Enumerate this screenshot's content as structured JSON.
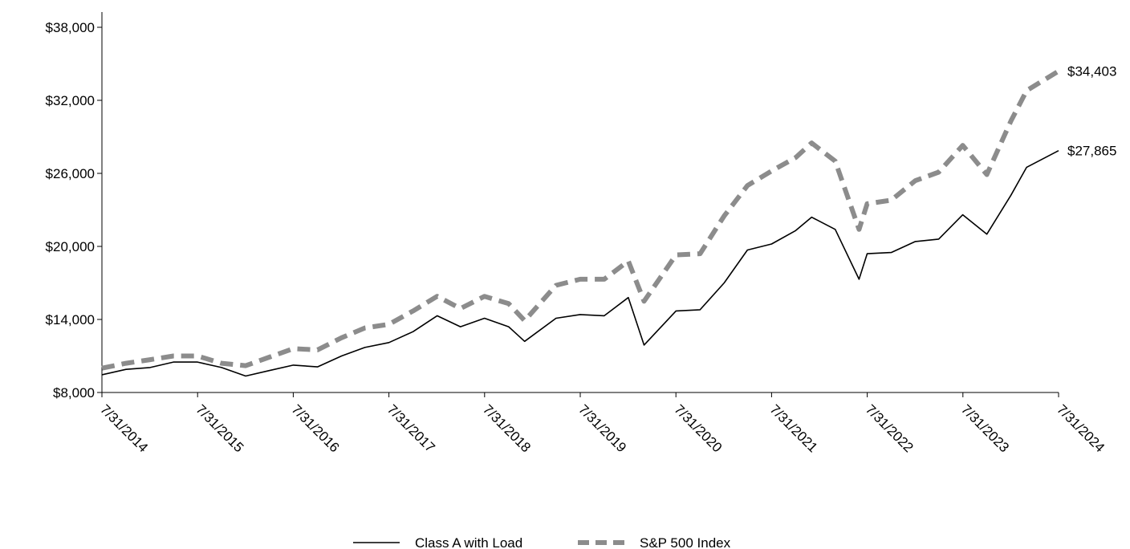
{
  "chart_data": {
    "type": "line",
    "x_label_format": "M/D/YYYY",
    "x_ticks": [
      "7/31/2014",
      "7/31/2015",
      "7/31/2016",
      "7/31/2017",
      "7/31/2018",
      "7/31/2019",
      "7/31/2020",
      "7/31/2021",
      "7/31/2022",
      "7/31/2023",
      "7/31/2024"
    ],
    "y_ticks": [
      "$8,000",
      "$14,000",
      "$20,000",
      "$26,000",
      "$32,000",
      "$38,000"
    ],
    "y_tick_values": [
      8000,
      14000,
      20000,
      26000,
      32000,
      38000
    ],
    "ylim": [
      8000,
      39000
    ],
    "x_start": "2014-07-31",
    "x_end": "2024-07-31",
    "legend_position": "bottom-center",
    "grid": false,
    "series": [
      {
        "name": "Class A with Load",
        "color": "#000000",
        "style": "solid",
        "end_label": "$27,865",
        "points": [
          [
            "2014-07-31",
            9450
          ],
          [
            "2014-10-31",
            9900
          ],
          [
            "2015-01-31",
            10050
          ],
          [
            "2015-04-30",
            10500
          ],
          [
            "2015-07-31",
            10500
          ],
          [
            "2015-10-31",
            10050
          ],
          [
            "2016-01-31",
            9350
          ],
          [
            "2016-04-30",
            9800
          ],
          [
            "2016-07-31",
            10250
          ],
          [
            "2016-10-31",
            10100
          ],
          [
            "2017-01-31",
            11000
          ],
          [
            "2017-04-30",
            11700
          ],
          [
            "2017-07-31",
            12100
          ],
          [
            "2017-10-31",
            13000
          ],
          [
            "2018-01-31",
            14300
          ],
          [
            "2018-04-30",
            13400
          ],
          [
            "2018-07-31",
            14100
          ],
          [
            "2018-10-31",
            13400
          ],
          [
            "2018-12-31",
            12200
          ],
          [
            "2019-04-30",
            14100
          ],
          [
            "2019-07-31",
            14400
          ],
          [
            "2019-10-31",
            14300
          ],
          [
            "2020-01-31",
            15800
          ],
          [
            "2020-03-31",
            11900
          ],
          [
            "2020-07-31",
            14700
          ],
          [
            "2020-10-31",
            14800
          ],
          [
            "2021-01-31",
            17000
          ],
          [
            "2021-04-30",
            19700
          ],
          [
            "2021-07-31",
            20200
          ],
          [
            "2021-10-31",
            21300
          ],
          [
            "2021-12-31",
            22400
          ],
          [
            "2022-03-31",
            21400
          ],
          [
            "2022-06-30",
            17300
          ],
          [
            "2022-07-31",
            19400
          ],
          [
            "2022-10-31",
            19500
          ],
          [
            "2023-01-31",
            20400
          ],
          [
            "2023-04-30",
            20600
          ],
          [
            "2023-07-31",
            22600
          ],
          [
            "2023-10-31",
            21000
          ],
          [
            "2024-01-31",
            24200
          ],
          [
            "2024-03-31",
            26500
          ],
          [
            "2024-07-31",
            27865
          ]
        ]
      },
      {
        "name": "S&P 500 Index",
        "color": "#8c8c8c",
        "style": "dashed",
        "end_label": "$34,403",
        "points": [
          [
            "2014-07-31",
            10000
          ],
          [
            "2014-10-31",
            10400
          ],
          [
            "2015-01-31",
            10700
          ],
          [
            "2015-04-30",
            11000
          ],
          [
            "2015-07-31",
            11000
          ],
          [
            "2015-10-31",
            10400
          ],
          [
            "2016-01-31",
            10200
          ],
          [
            "2016-04-30",
            10900
          ],
          [
            "2016-07-31",
            11600
          ],
          [
            "2016-10-31",
            11500
          ],
          [
            "2017-01-31",
            12500
          ],
          [
            "2017-04-30",
            13300
          ],
          [
            "2017-07-31",
            13600
          ],
          [
            "2017-10-31",
            14700
          ],
          [
            "2018-01-31",
            15900
          ],
          [
            "2018-04-30",
            14900
          ],
          [
            "2018-07-31",
            15900
          ],
          [
            "2018-10-31",
            15300
          ],
          [
            "2018-12-31",
            13900
          ],
          [
            "2019-04-30",
            16800
          ],
          [
            "2019-07-31",
            17300
          ],
          [
            "2019-10-31",
            17300
          ],
          [
            "2020-01-31",
            18800
          ],
          [
            "2020-03-31",
            15500
          ],
          [
            "2020-07-31",
            19300
          ],
          [
            "2020-10-31",
            19400
          ],
          [
            "2021-01-31",
            22500
          ],
          [
            "2021-04-30",
            25000
          ],
          [
            "2021-07-31",
            26200
          ],
          [
            "2021-10-31",
            27300
          ],
          [
            "2021-12-31",
            28500
          ],
          [
            "2022-03-31",
            27000
          ],
          [
            "2022-06-30",
            21400
          ],
          [
            "2022-07-31",
            23500
          ],
          [
            "2022-10-31",
            23800
          ],
          [
            "2023-01-31",
            25400
          ],
          [
            "2023-04-30",
            26100
          ],
          [
            "2023-07-31",
            28300
          ],
          [
            "2023-10-31",
            25900
          ],
          [
            "2024-01-31",
            30300
          ],
          [
            "2024-03-31",
            32800
          ],
          [
            "2024-07-31",
            34403
          ]
        ]
      }
    ]
  }
}
